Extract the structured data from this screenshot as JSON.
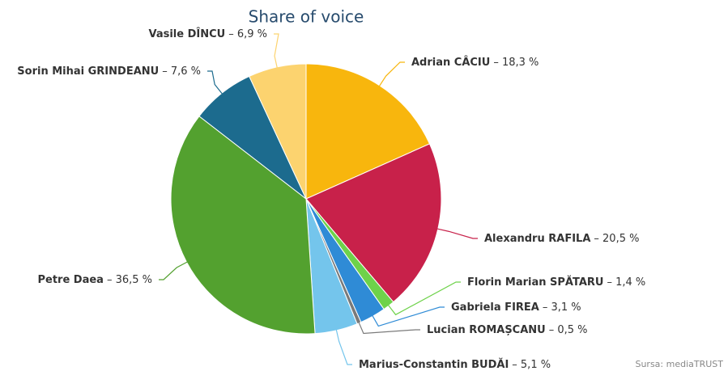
{
  "chart_data": {
    "type": "pie",
    "title": "Share of voice",
    "source": "Sursa: mediaTRUST",
    "categories": [
      "Adrian CÂCIU",
      "Alexandru RAFILA",
      "Florin Marian SPĂTARU",
      "Gabriela FIREA",
      "Lucian ROMAȘCANU",
      "Marius-Constantin BUDĂI",
      "Petre Daea",
      "Sorin Mihai GRINDEANU",
      "Vasile DÎNCU"
    ],
    "values": [
      18.3,
      20.5,
      1.4,
      3.1,
      0.5,
      5.1,
      36.5,
      7.6,
      6.9
    ],
    "value_labels": [
      "– 18,3 %",
      "– 20,5 %",
      "– 1,4 %",
      "– 3,1 %",
      "– 0,5 %",
      "– 5,1 %",
      "– 36,5 %",
      "– 7,6 %",
      "– 6,9 %"
    ],
    "colors": [
      "#f8b60d",
      "#c8214a",
      "#6ed24a",
      "#2f8bd6",
      "#7a7a7a",
      "#74c5ec",
      "#53a12f",
      "#1c6b8e",
      "#fcd36f"
    ]
  }
}
